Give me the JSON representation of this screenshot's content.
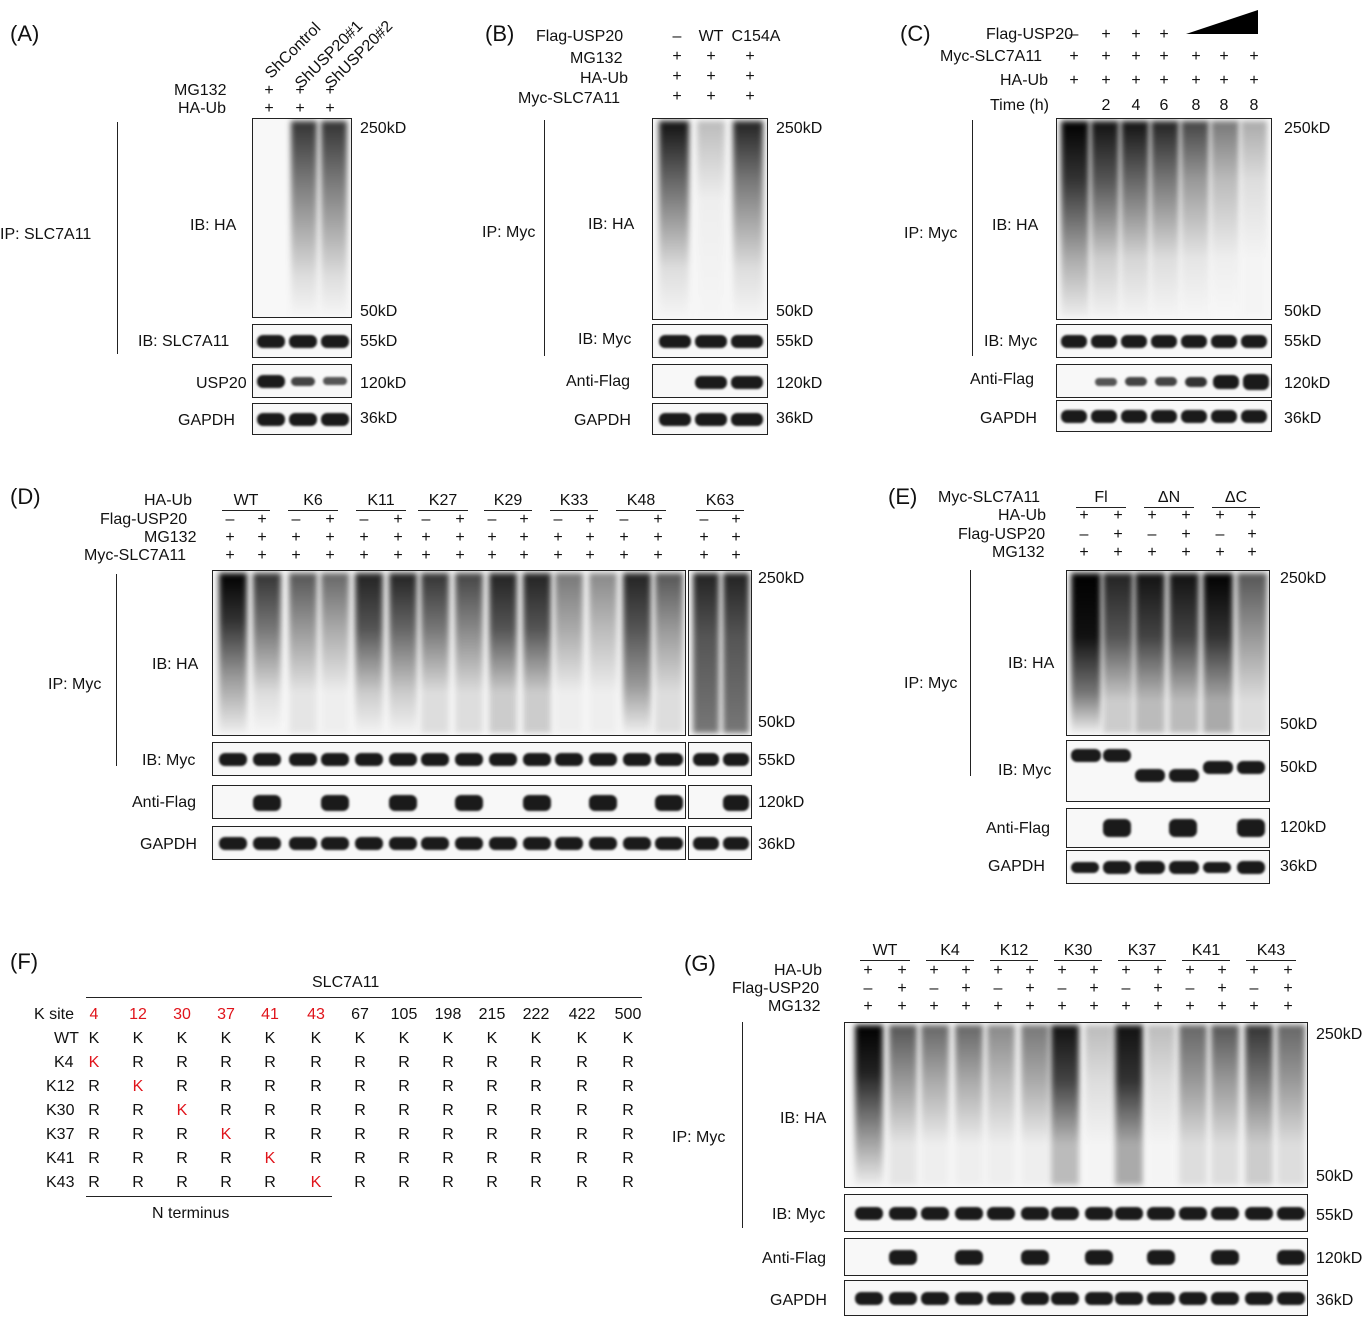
{
  "panels": {
    "A": "(A)",
    "B": "(B)",
    "C": "(C)",
    "D": "(D)",
    "E": "(E)",
    "F": "(F)",
    "G": "(G)"
  },
  "common": {
    "kd250": "250kD",
    "kd50": "50kD",
    "kd55": "55kD",
    "kd120": "120kD",
    "kd36": "36kD",
    "ib_ha": "IB: HA",
    "ib_myc": "IB: Myc",
    "anti_flag": "Anti-Flag",
    "gapdh": "GAPDH",
    "ip_myc": "IP: Myc",
    "plus": "+",
    "minus": "–"
  },
  "A": {
    "lanes": [
      "ShControl",
      "ShUSP20#1",
      "ShUSP20#2"
    ],
    "rows": [
      "MG132",
      "HA-Ub"
    ],
    "ip": "IP: SLC7A11",
    "ib_slc": "IB: SLC7A11",
    "usp20": "USP20"
  },
  "B": {
    "rows": [
      "Flag-USP20",
      "MG132",
      "HA-Ub",
      "Myc-SLC7A11"
    ],
    "flag_vals": [
      "–",
      "WT",
      "C154A"
    ],
    "ib_myc": "IB: Myc"
  },
  "C": {
    "rows": [
      "Flag-USP20",
      "Myc-SLC7A11",
      "HA-Ub",
      "Time (h)"
    ],
    "time": [
      "",
      "2",
      "4",
      "6",
      "8",
      "8",
      "8"
    ]
  },
  "D": {
    "rows": [
      "HA-Ub",
      "Flag-USP20",
      "MG132",
      "Myc-SLC7A11"
    ],
    "groups": [
      "WT",
      "K6",
      "K11",
      "K27",
      "K29",
      "K33",
      "K48",
      "K63"
    ]
  },
  "E": {
    "rows": [
      "Myc-SLC7A11",
      "HA-Ub",
      "Flag-USP20",
      "MG132"
    ],
    "groups": [
      "Fl",
      "ΔN",
      "ΔC"
    ],
    "kd50b": "50kD"
  },
  "F": {
    "title": "SLC7A11",
    "footer": "N terminus",
    "header": "K site",
    "sites": [
      "4",
      "12",
      "30",
      "37",
      "41",
      "43",
      "67",
      "105",
      "198",
      "215",
      "222",
      "422",
      "500"
    ],
    "rows": [
      {
        "name": "WT",
        "vals": [
          "K",
          "K",
          "K",
          "K",
          "K",
          "K",
          "K",
          "K",
          "K",
          "K",
          "K",
          "K",
          "K"
        ],
        "red": -1
      },
      {
        "name": "K4",
        "vals": [
          "K",
          "R",
          "R",
          "R",
          "R",
          "R",
          "R",
          "R",
          "R",
          "R",
          "R",
          "R",
          "R"
        ],
        "red": 0
      },
      {
        "name": "K12",
        "vals": [
          "R",
          "K",
          "R",
          "R",
          "R",
          "R",
          "R",
          "R",
          "R",
          "R",
          "R",
          "R",
          "R"
        ],
        "red": 1
      },
      {
        "name": "K30",
        "vals": [
          "R",
          "R",
          "K",
          "R",
          "R",
          "R",
          "R",
          "R",
          "R",
          "R",
          "R",
          "R",
          "R"
        ],
        "red": 2
      },
      {
        "name": "K37",
        "vals": [
          "R",
          "R",
          "R",
          "K",
          "R",
          "R",
          "R",
          "R",
          "R",
          "R",
          "R",
          "R",
          "R"
        ],
        "red": 3
      },
      {
        "name": "K41",
        "vals": [
          "R",
          "R",
          "R",
          "R",
          "K",
          "R",
          "R",
          "R",
          "R",
          "R",
          "R",
          "R",
          "R"
        ],
        "red": 4
      },
      {
        "name": "K43",
        "vals": [
          "R",
          "R",
          "R",
          "R",
          "R",
          "K",
          "R",
          "R",
          "R",
          "R",
          "R",
          "R",
          "R"
        ],
        "red": 5
      }
    ]
  },
  "G": {
    "rows": [
      "HA-Ub",
      "Flag-USP20",
      "MG132"
    ],
    "groups": [
      "WT",
      "K4",
      "K12",
      "K30",
      "K37",
      "K41",
      "K43"
    ]
  }
}
